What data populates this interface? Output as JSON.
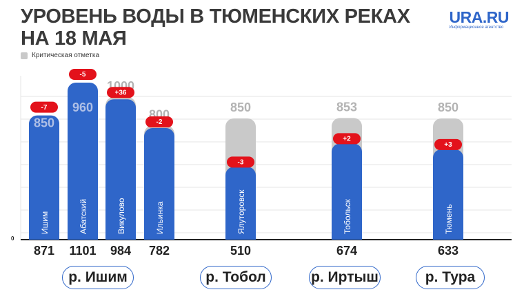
{
  "title_lines": [
    "УРОВЕНЬ ВОДЫ В ТЮМЕНСКИХ РЕКАХ",
    "НА 18 МАЯ"
  ],
  "logo": {
    "main": "URA.RU",
    "sub": "Информационное агентство"
  },
  "legend": {
    "critical_label": "Критическая отметка"
  },
  "colors": {
    "bar": "#2f66c9",
    "critical": "#c9c9c9",
    "change_badge": "#e3121b",
    "grid": "#e6e6e6",
    "axis": "#222222"
  },
  "chart_data": {
    "type": "bar",
    "y_axis_tick": "0",
    "categories": [
      "Ишим",
      "Абатский",
      "Викулово",
      "Ильинка",
      "Ялуторовск",
      "Тобольск",
      "Тюмень"
    ],
    "series": [
      {
        "name": "",
        "values": [
          871,
          1101,
          984,
          782,
          510,
          674,
          633
        ]
      },
      {
        "name": "Критическая отметка",
        "values": [
          850,
          960,
          1000,
          800,
          850,
          853,
          850
        ]
      }
    ],
    "value_labels": [
      "871",
      "1101",
      "984",
      "782",
      "510",
      "674",
      "633"
    ],
    "critical_labels": [
      "850",
      "960",
      "1000",
      "800",
      "850",
      "853",
      "850"
    ],
    "changes": [
      "-7",
      "-5",
      "+36",
      "-2",
      "-3",
      "+2",
      "+3"
    ],
    "groups": [
      {
        "label": "р. Ишим",
        "members": [
          0,
          1,
          2,
          3
        ]
      },
      {
        "label": "р. Тобол",
        "members": [
          4
        ]
      },
      {
        "label": "р. Иртыш",
        "members": [
          5
        ]
      },
      {
        "label": "р. Тура",
        "members": [
          6
        ]
      }
    ]
  }
}
